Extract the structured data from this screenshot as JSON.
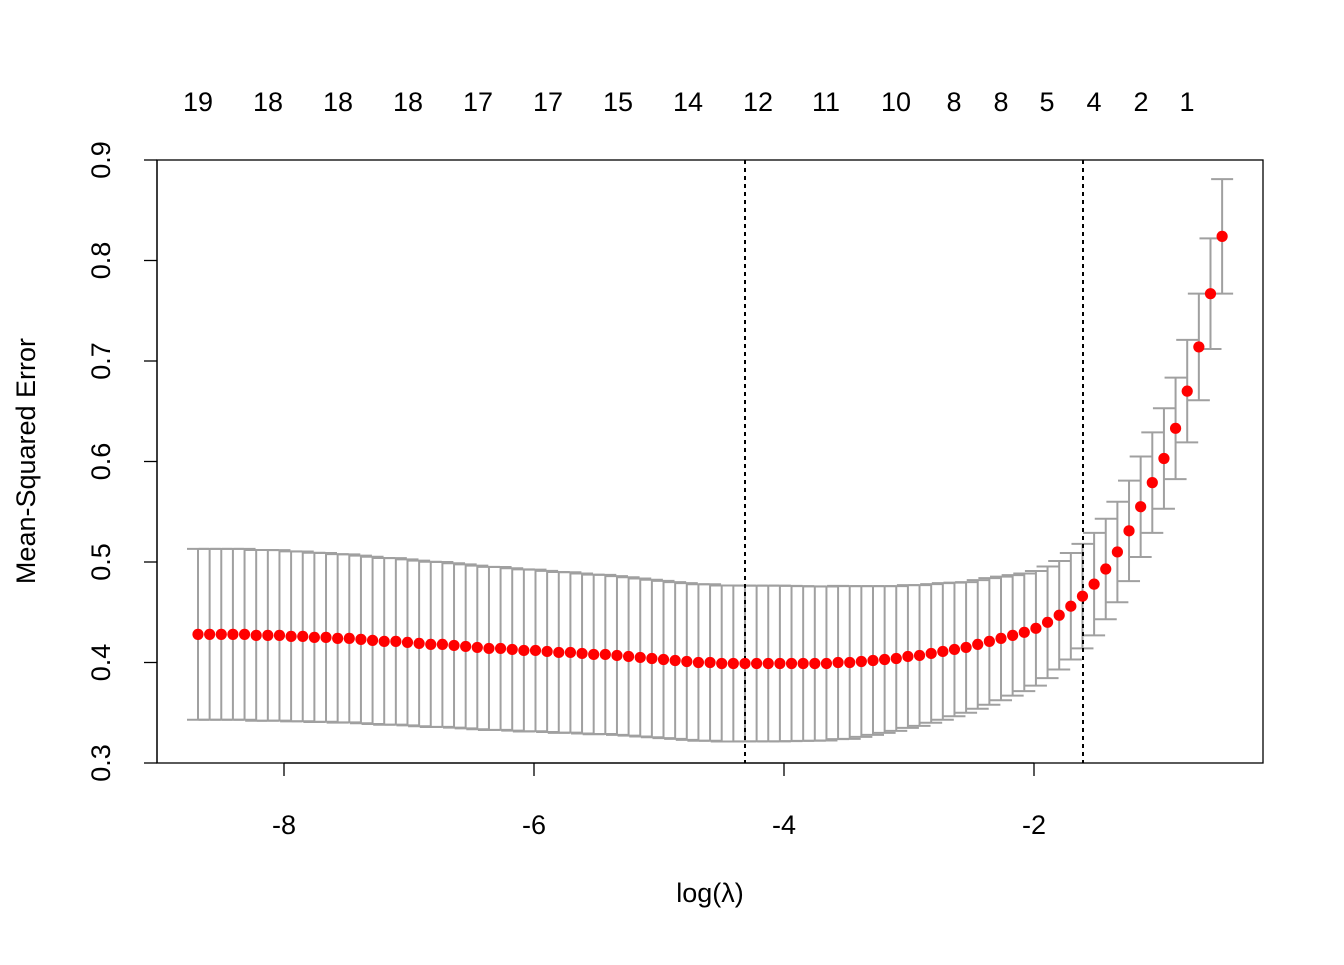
{
  "chart_data": {
    "type": "scatter",
    "title": "",
    "xlabel": "log(λ)",
    "ylabel": "Mean-Squared Error",
    "xlim": [
      -9.016,
      -0.168
    ],
    "ylim": [
      0.3,
      0.9
    ],
    "grid": false,
    "x_ticks": [
      -8,
      -6,
      -4,
      -2
    ],
    "x_tick_labels": [
      "-8",
      "-6",
      "-4",
      "-2"
    ],
    "y_ticks": [
      0.3,
      0.4,
      0.5,
      0.6,
      0.7,
      0.8,
      0.9
    ],
    "y_tick_labels": [
      "0.3",
      "0.4",
      "0.5",
      "0.6",
      "0.7",
      "0.8",
      "0.9"
    ],
    "top_axis": {
      "description_values_at": [
        -8.688,
        -8.128,
        -7.568,
        -7.008,
        -6.448,
        -5.888,
        -5.328,
        -4.768,
        -4.208,
        -3.664,
        -3.104,
        -2.64,
        -2.264,
        -1.896,
        -1.52,
        -1.144,
        -0.776
      ],
      "labels": [
        "19",
        "18",
        "18",
        "18",
        "17",
        "17",
        "15",
        "14",
        "12",
        "11",
        "10",
        "8",
        "8",
        "5",
        "4",
        "2",
        "1"
      ]
    },
    "vlines": [
      -4.312,
      -1.608
    ],
    "log_lambda_start": -8.688,
    "log_lambda_end": -0.495,
    "cvm": [
      0.428,
      0.428,
      0.428,
      0.428,
      0.428,
      0.427,
      0.427,
      0.427,
      0.426,
      0.426,
      0.425,
      0.425,
      0.424,
      0.424,
      0.423,
      0.422,
      0.421,
      0.421,
      0.42,
      0.419,
      0.418,
      0.418,
      0.417,
      0.416,
      0.415,
      0.414,
      0.414,
      0.413,
      0.412,
      0.412,
      0.411,
      0.41,
      0.41,
      0.409,
      0.408,
      0.408,
      0.407,
      0.406,
      0.405,
      0.404,
      0.403,
      0.402,
      0.401,
      0.4,
      0.4,
      0.399,
      0.399,
      0.399,
      0.399,
      0.399,
      0.399,
      0.399,
      0.399,
      0.399,
      0.399,
      0.4,
      0.4,
      0.401,
      0.402,
      0.403,
      0.404,
      0.406,
      0.407,
      0.409,
      0.411,
      0.413,
      0.415,
      0.418,
      0.421,
      0.424,
      0.427,
      0.43,
      0.434,
      0.44,
      0.447,
      0.456,
      0.466,
      0.478,
      0.493,
      0.51,
      0.531,
      0.555,
      0.579,
      0.603,
      0.633,
      0.67,
      0.714,
      0.767,
      0.824
    ],
    "cvsd": [
      0.085,
      0.085,
      0.085,
      0.085,
      0.085,
      0.085,
      0.085,
      0.0848,
      0.0846,
      0.0844,
      0.0842,
      0.084,
      0.0838,
      0.0836,
      0.0834,
      0.0832,
      0.083,
      0.0828,
      0.0826,
      0.0824,
      0.0822,
      0.082,
      0.0818,
      0.0816,
      0.0814,
      0.0812,
      0.081,
      0.0808,
      0.0806,
      0.0804,
      0.0802,
      0.08,
      0.0798,
      0.0796,
      0.0794,
      0.0792,
      0.079,
      0.0788,
      0.0786,
      0.0784,
      0.0782,
      0.078,
      0.078,
      0.0778,
      0.0778,
      0.0776,
      0.0776,
      0.0775,
      0.0775,
      0.0775,
      0.0775,
      0.0772,
      0.077,
      0.0768,
      0.0766,
      0.0763,
      0.076,
      0.075,
      0.074,
      0.073,
      0.072,
      0.071,
      0.07,
      0.069,
      0.068,
      0.0665,
      0.065,
      0.064,
      0.063,
      0.0615,
      0.06,
      0.0585,
      0.057,
      0.0555,
      0.054,
      0.053,
      0.052,
      0.051,
      0.05,
      0.05,
      0.05,
      0.05,
      0.05,
      0.05,
      0.0505,
      0.051,
      0.053,
      0.055,
      0.057
    ],
    "colors": {
      "points": "#FF0000",
      "error_bars": "#A0A0A0",
      "vlines": "#000000",
      "axes": "#000000"
    }
  }
}
